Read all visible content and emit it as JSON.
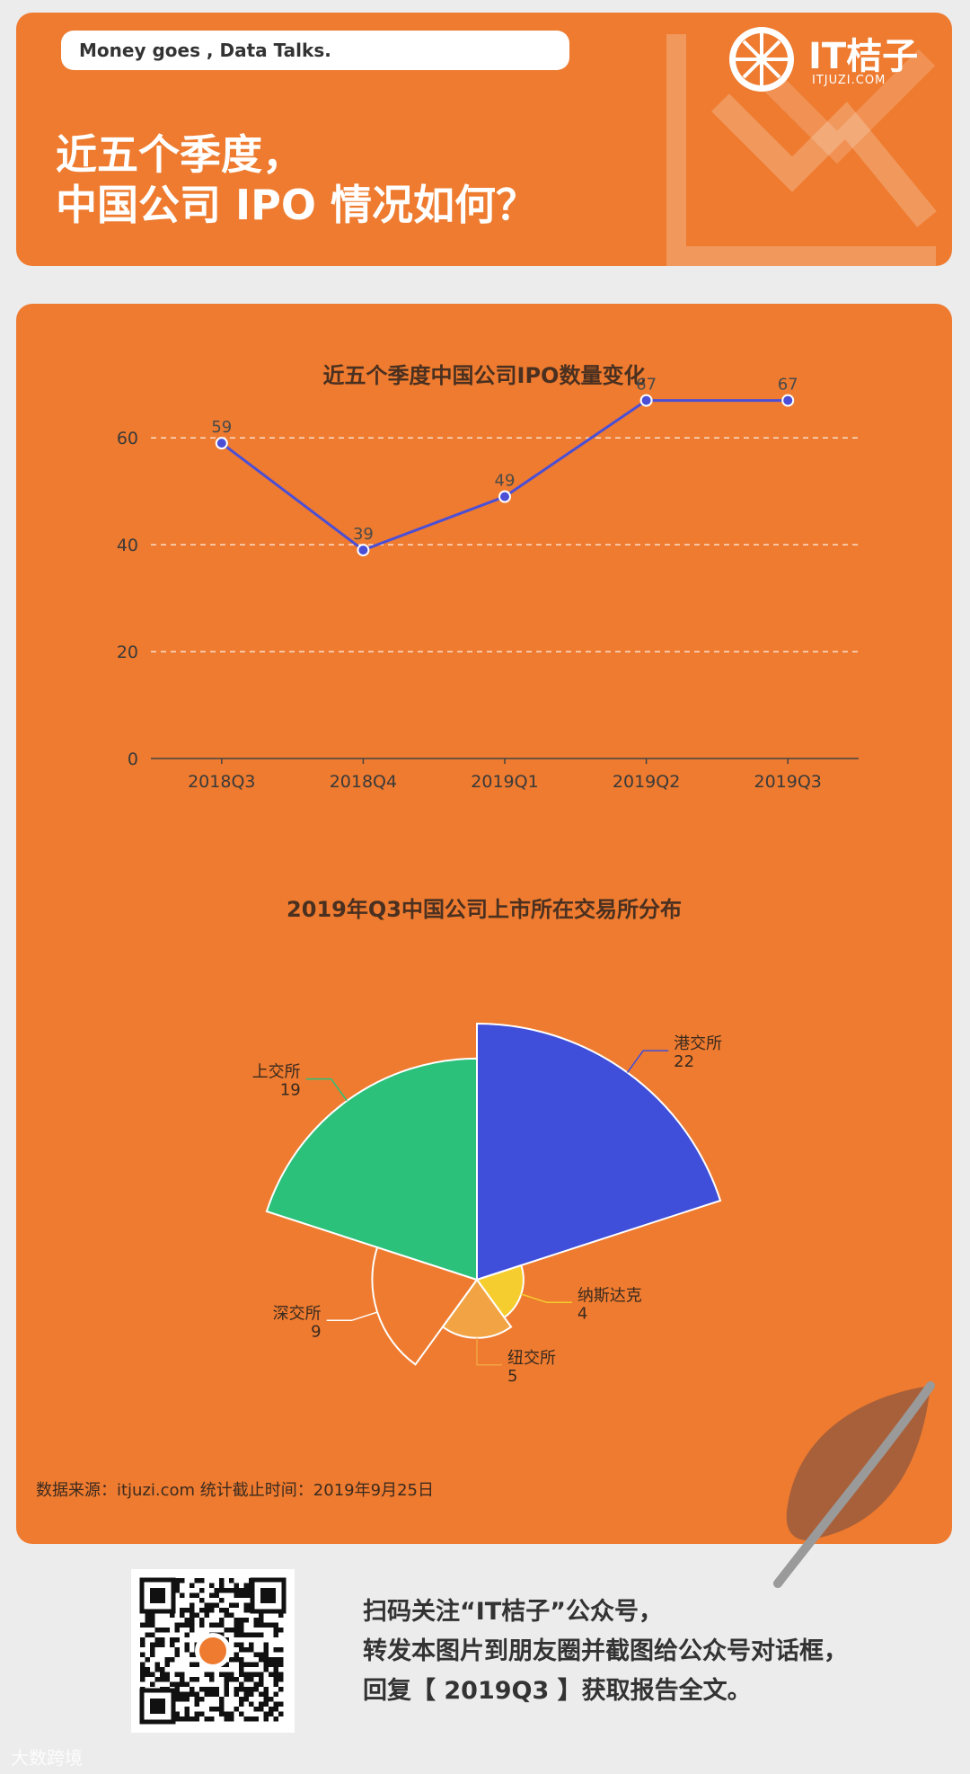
{
  "header": {
    "slogan": "Money goes , Data Talks.",
    "headline_line1": "近五个季度，",
    "headline_line2": "中国公司 IPO 情况如何？",
    "logo_text": "IT桔子",
    "logo_sub": "ITJUZI.COM"
  },
  "colors": {
    "orange": "#ee7b2f",
    "line": "#4b4fd6",
    "blue": "#3f4fd9",
    "green": "#2bc17b",
    "yellow": "#f5cd2e",
    "light_orange": "#f2a444"
  },
  "chart_data": [
    {
      "type": "line",
      "title": "近五个季度中国公司IPO数量变化",
      "categories": [
        "2018Q3",
        "2018Q4",
        "2019Q1",
        "2019Q2",
        "2019Q3"
      ],
      "series": [
        {
          "values": [
            59,
            39,
            49,
            67,
            67
          ]
        }
      ],
      "y_ticks": [
        "0",
        "20",
        "40",
        "60"
      ],
      "ylim": [
        0,
        75
      ],
      "grid": true
    },
    {
      "type": "pie",
      "subtype": "rose",
      "title": "2019年Q3中国公司上市所在交易所分布",
      "slices": [
        {
          "label": "港交所",
          "value": 22
        },
        {
          "label": "纳斯达克",
          "value": 4
        },
        {
          "label": "纽交所",
          "value": 5
        },
        {
          "label": "深交所",
          "value": 9
        },
        {
          "label": "上交所",
          "value": 19
        }
      ]
    }
  ],
  "source": "数据来源：itjuzi.com 统计截止时间：2019年9月25日",
  "footer": {
    "line1": "扫码关注“IT桔子”公众号，",
    "line2": "转发本图片到朋友圈并截图给公众号对话框，",
    "line3": "回复【 2019Q3 】获取报告全文。"
  },
  "watermark": "大数跨境"
}
